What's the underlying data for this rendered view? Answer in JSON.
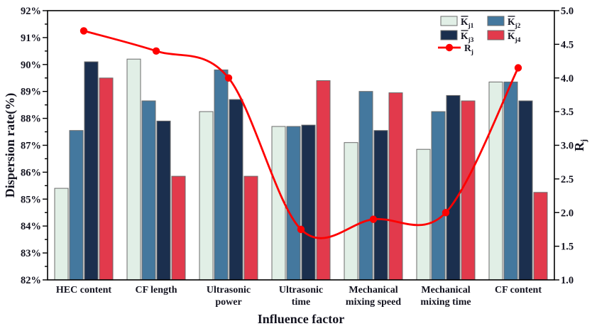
{
  "chart_data": {
    "type": "bar+line",
    "background": "#ffffff",
    "categories": [
      [
        "HEC content"
      ],
      [
        "CF length"
      ],
      [
        "Ultrasonic",
        "power"
      ],
      [
        "Ultrasonic",
        "time"
      ],
      [
        "Mechanical",
        "mixing speed"
      ],
      [
        "Mechanical",
        "mixing time"
      ],
      [
        "CF content"
      ]
    ],
    "xlabel": "Influence factor",
    "left_axis": {
      "label": "Dispersion rate(%)",
      "min": 82,
      "max": 92,
      "tick_step": 1,
      "minor_step": 0.5,
      "tick_labels": [
        "82%",
        "83%",
        "84%",
        "85%",
        "86%",
        "87%",
        "88%",
        "89%",
        "90%",
        "91%",
        "92%"
      ]
    },
    "right_axis": {
      "label_base": "R",
      "label_sub": "j",
      "min": 1.0,
      "max": 5.0,
      "tick_step": 0.5,
      "tick_labels": [
        "1.0",
        "1.5",
        "2.0",
        "2.5",
        "3.0",
        "3.5",
        "4.0",
        "4.5",
        "5.0"
      ]
    },
    "bar_outline": "#6b6b6b",
    "axis_color": "#000000",
    "text_color": "#141420",
    "bar_series": [
      {
        "name_base": "K",
        "name_sub": "j1",
        "overbar": true,
        "color": "#e1efe6",
        "values": [
          85.4,
          90.2,
          88.25,
          87.7,
          87.1,
          86.85,
          89.35
        ]
      },
      {
        "name_base": "K",
        "name_sub": "j2",
        "overbar": true,
        "color": "#44789e",
        "values": [
          87.55,
          88.65,
          89.8,
          87.7,
          89.0,
          88.25,
          89.35
        ]
      },
      {
        "name_base": "K",
        "name_sub": "j3",
        "overbar": true,
        "color": "#1b2f4e",
        "values": [
          90.1,
          87.9,
          88.7,
          87.75,
          87.55,
          88.85,
          88.65
        ]
      },
      {
        "name_base": "K",
        "name_sub": "j4",
        "overbar": true,
        "color": "#e23a4c",
        "values": [
          89.5,
          85.85,
          85.85,
          89.4,
          88.95,
          88.65,
          85.25
        ]
      }
    ],
    "line_series": {
      "name_base": "R",
      "name_sub": "j",
      "overbar": false,
      "axis": "right",
      "color": "#fe0000",
      "values": [
        4.7,
        4.4,
        4.0,
        1.75,
        1.9,
        2.0,
        4.15
      ]
    },
    "legend_position": "top-right-inside"
  }
}
